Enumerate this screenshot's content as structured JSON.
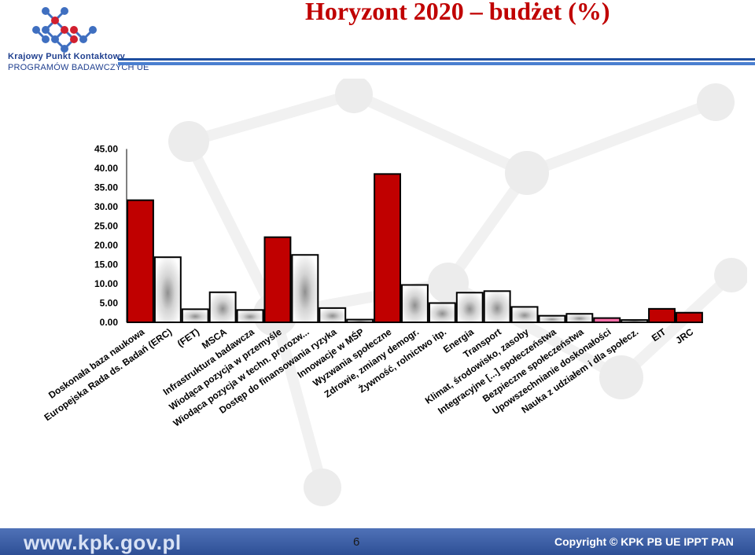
{
  "header": {
    "title": "Horyzont 2020 – budżet (%)",
    "logo_line1": "Krajowy Punkt Kontaktowy",
    "logo_line2": "PROGRAMÓW BADAWCZYCH UE",
    "logo_icon": "molecule-network-icon"
  },
  "footer": {
    "url": "www.kpk.gov.pl",
    "page_number": "6",
    "copyright": "Copyright ©  KPK PB UE IPPT PAN"
  },
  "colors": {
    "highlight_bar": "#c00000",
    "gray_bar": "#cfcfcf",
    "pink_bar": "#ff6fa8",
    "title": "#c00000",
    "footer": "#3c5fa8"
  },
  "chart_data": {
    "type": "bar",
    "title": "",
    "xlabel": "",
    "ylabel": "",
    "ylim": [
      0,
      45
    ],
    "ytick_labels": [
      "0.00",
      "5.00",
      "10.00",
      "15.00",
      "20.00",
      "25.00",
      "30.00",
      "35.00",
      "40.00",
      "45.00"
    ],
    "grid": false,
    "legend": "none",
    "categories": [
      "Doskonała baza naukowa",
      "Europejska Rada ds. Badań (ERC)",
      "(FET)",
      "MSCA",
      "Infrastruktura badawcza",
      "Wiodąca pozycja w przemyśle",
      "Wiodąca pozycja w techn. prorozw...",
      "Dostęp do finansowania ryzyka",
      "Innowacje w MŚP",
      "Wyzwania społeczne",
      "Zdrowie, zmiany demogr.",
      "Żywność, rolnictwo itp.",
      "Energia",
      "Transport",
      "Klimat, środowisko, zasoby",
      "Integracyjne [...] społeczeństwa",
      "Bezpieczne społeczeństwa",
      "Upowszechnianie doskonałości",
      "Nauka z udziałem i dla społecz.",
      "EIT",
      "JRC"
    ],
    "values": [
      31.7,
      16.9,
      3.4,
      7.8,
      3.2,
      22.1,
      17.5,
      3.7,
      0.7,
      38.5,
      9.7,
      5.0,
      7.7,
      8.1,
      4.0,
      1.7,
      2.2,
      1.1,
      0.6,
      3.5,
      2.5
    ],
    "bar_styles": [
      "red",
      "gray",
      "gray",
      "gray",
      "gray",
      "red",
      "gray",
      "gray",
      "gray",
      "red",
      "gray",
      "gray",
      "gray",
      "gray",
      "gray",
      "gray",
      "gray",
      "pink",
      "gray",
      "red",
      "red"
    ]
  }
}
